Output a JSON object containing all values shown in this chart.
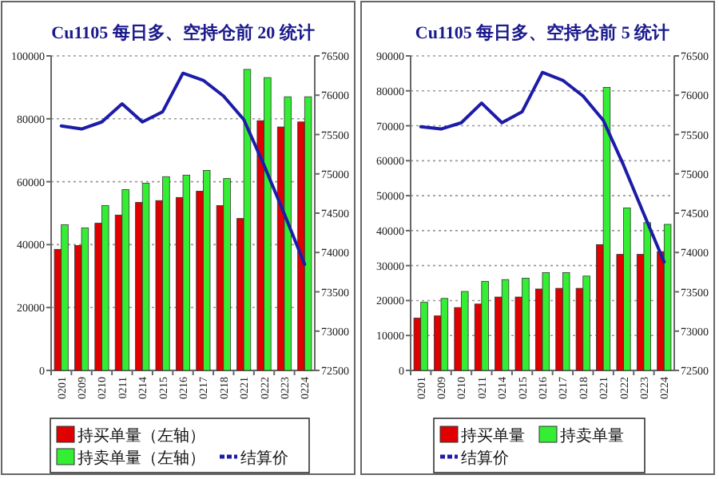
{
  "chart_data": [
    {
      "type": "bar",
      "title": "Cu1105 每日多、空持仓前 20 统计",
      "categories": [
        "0201",
        "0209",
        "0210",
        "0211",
        "0214",
        "0215",
        "0216",
        "0217",
        "0218",
        "0221",
        "0222",
        "0223",
        "0224"
      ],
      "series": [
        {
          "name": "持买单量（左轴）",
          "color": "#e00000",
          "values": [
            38500,
            39700,
            46800,
            49400,
            53400,
            54000,
            55000,
            57000,
            52400,
            48300,
            79400,
            77400,
            79000
          ]
        },
        {
          "name": "持卖单量（左轴）",
          "color": "#33ee33",
          "values": [
            46300,
            45300,
            52400,
            57500,
            59500,
            61600,
            62100,
            63600,
            61000,
            95700,
            93100,
            87000,
            87000
          ]
        },
        {
          "name": "结算价",
          "type": "line",
          "axis": "y2",
          "color": "#1c1ca8",
          "values": [
            75610,
            75570,
            75660,
            75890,
            75660,
            75790,
            76280,
            76190,
            75990,
            75690,
            75110,
            74490,
            73850
          ]
        }
      ],
      "ylim": [
        0,
        100000
      ],
      "yticks": [
        0,
        20000,
        40000,
        60000,
        80000,
        100000
      ],
      "y2lim": [
        72500,
        76500
      ],
      "y2ticks": [
        72500,
        73000,
        73500,
        74000,
        74500,
        75000,
        75500,
        76000,
        76500
      ],
      "grid": "y",
      "legend": "bottom"
    },
    {
      "type": "bar",
      "title": "Cu1105 每日多、空持仓前 5 统计",
      "categories": [
        "0201",
        "0209",
        "0210",
        "0211",
        "0214",
        "0215",
        "0216",
        "0217",
        "0218",
        "0221",
        "0222",
        "0223",
        "0224"
      ],
      "series": [
        {
          "name": "持买单量",
          "color": "#e00000",
          "values": [
            15000,
            15600,
            18000,
            19000,
            21000,
            21000,
            23300,
            23500,
            23500,
            36000,
            33200,
            33200,
            34000
          ]
        },
        {
          "name": "持卖单量",
          "color": "#33ee33",
          "values": [
            19500,
            20600,
            22600,
            25500,
            26000,
            26400,
            28000,
            28000,
            27000,
            81000,
            46500,
            42300,
            41800
          ]
        },
        {
          "name": "结算价",
          "type": "line",
          "axis": "y2",
          "color": "#1c1ca8",
          "values": [
            75600,
            75570,
            75650,
            75900,
            75650,
            75790,
            76290,
            76190,
            75990,
            75680,
            75110,
            74490,
            73880
          ]
        }
      ],
      "ylim": [
        0,
        90000
      ],
      "yticks": [
        0,
        10000,
        20000,
        30000,
        40000,
        50000,
        60000,
        70000,
        80000,
        90000
      ],
      "y2lim": [
        72500,
        76500
      ],
      "y2ticks": [
        72500,
        73000,
        73500,
        74000,
        74500,
        75000,
        75500,
        76000,
        76500
      ],
      "grid": "y",
      "legend": "bottom"
    }
  ]
}
